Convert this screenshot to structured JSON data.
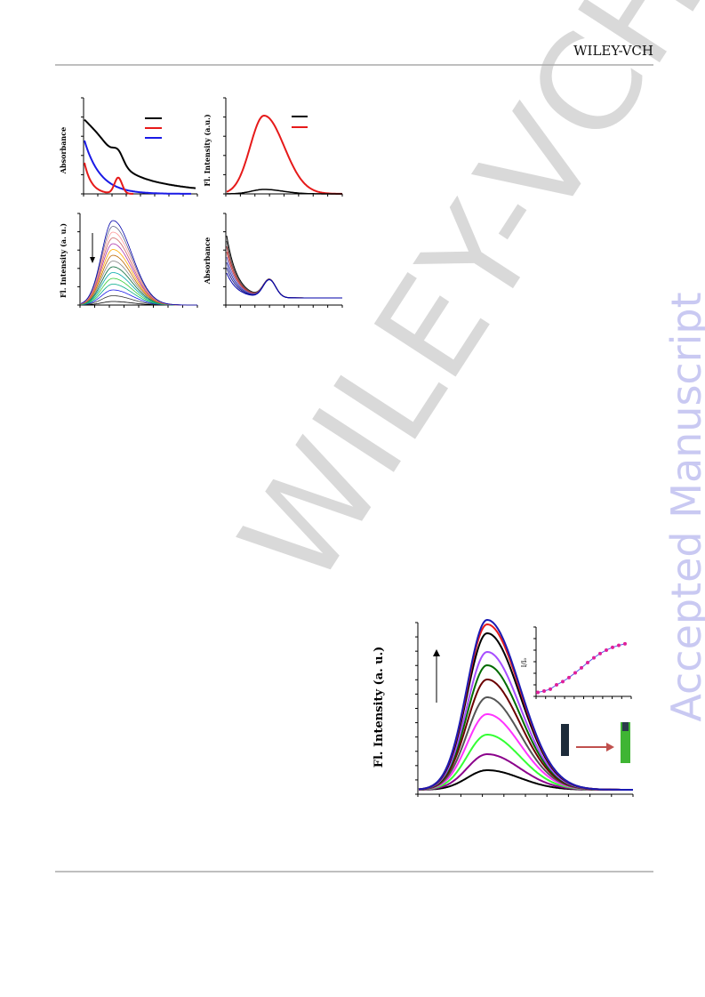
{
  "header": {
    "brand": "WILEY-VCH"
  },
  "watermark": {
    "diagonal": "WILEY-VCH",
    "side": "Accepted Manuscript"
  },
  "figures": [
    {
      "panels": [
        {
          "y_label": "Absorbance"
        },
        {
          "y_label": "Fl. Intensity (a.u.)"
        },
        {
          "y_label": "Fl. Intensity (a. u.)"
        },
        {
          "y_label": "Absorbance"
        }
      ]
    },
    {
      "y_label": "Fl. Intensity (a. u.)",
      "inset_y_label": "I/I₀"
    }
  ]
}
